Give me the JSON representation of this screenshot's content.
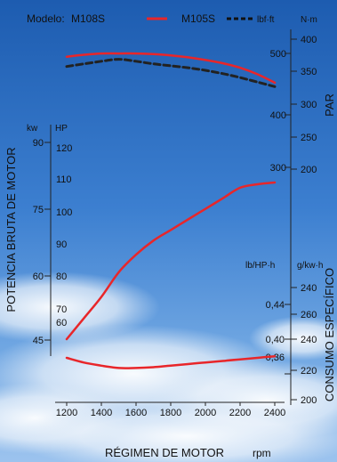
{
  "legend": {
    "prefix": "Modelo:",
    "m108s": "M108S",
    "m105s": "M105S"
  },
  "axis_titles": {
    "left": "POTENCIA BRUTA DE MOTOR",
    "right_top": "PAR",
    "right_bottom": "CONSUMO ESPECÍFICO",
    "bottom": "RÉGIMEN DE MOTOR",
    "bottom_unit": "rpm"
  },
  "units": {
    "kw": "kw",
    "hp": "HP",
    "lbfft": "lbf·ft",
    "nm": "N·m",
    "lbhph": "lb/HP·h",
    "gkwh": "g/kw·h"
  },
  "ticks": {
    "kw": [
      "90",
      "75",
      "60",
      "45"
    ],
    "hp": [
      "120",
      "110",
      "100",
      "90",
      "80",
      "70",
      "60"
    ],
    "lbfft": [
      "500",
      "400",
      "300"
    ],
    "nm": [
      "400",
      "350",
      "300",
      "250",
      "200"
    ],
    "lbhph": [
      "0,44",
      "0,40",
      "0,36"
    ],
    "gkwh": [
      "240",
      "260",
      "240",
      "220",
      "200"
    ],
    "rpm": [
      "1200",
      "1400",
      "1600",
      "1800",
      "2000",
      "2200",
      "2400"
    ]
  },
  "colors": {
    "m108s": "#e8262a",
    "m105s": "#222222",
    "sky_top": "#1f5fb3",
    "sky_bottom": "#7fb0e6"
  },
  "chart_data": {
    "type": "line",
    "x": [
      1200,
      1300,
      1400,
      1500,
      1600,
      1700,
      1800,
      1900,
      2000,
      2100,
      2200,
      2300,
      2400
    ],
    "xlabel": "RÉGIMEN DE MOTOR rpm",
    "xlim": [
      1150,
      2450
    ],
    "series": [
      {
        "name": "M108S",
        "quantity": "torque",
        "unit": "N·m",
        "values": [
          373,
          376,
          378,
          378,
          378,
          377,
          375,
          372,
          368,
          363,
          356,
          346,
          333
        ]
      },
      {
        "name": "M105S",
        "quantity": "torque",
        "unit": "N·m",
        "values": [
          358,
          362,
          366,
          369,
          366,
          362,
          359,
          356,
          352,
          347,
          341,
          334,
          327
        ]
      },
      {
        "name": "M108S",
        "quantity": "power",
        "unit": "HP",
        "values": [
          60,
          66,
          72,
          79,
          84,
          88,
          91,
          94,
          97,
          100,
          103,
          104,
          104.5
        ]
      },
      {
        "name": "M108S",
        "quantity": "specific consumption",
        "unit": "g/kw·h",
        "values": [
          228,
          225,
          223,
          221.5,
          221.5,
          222,
          223,
          224,
          225,
          226,
          227,
          228,
          229
        ]
      }
    ],
    "axes": {
      "power_hp": {
        "range": [
          55,
          125
        ]
      },
      "torque_nm": {
        "range": [
          170,
          420
        ]
      },
      "consumption_gkwh": {
        "range": [
          190,
          250
        ]
      }
    },
    "grid": false
  }
}
